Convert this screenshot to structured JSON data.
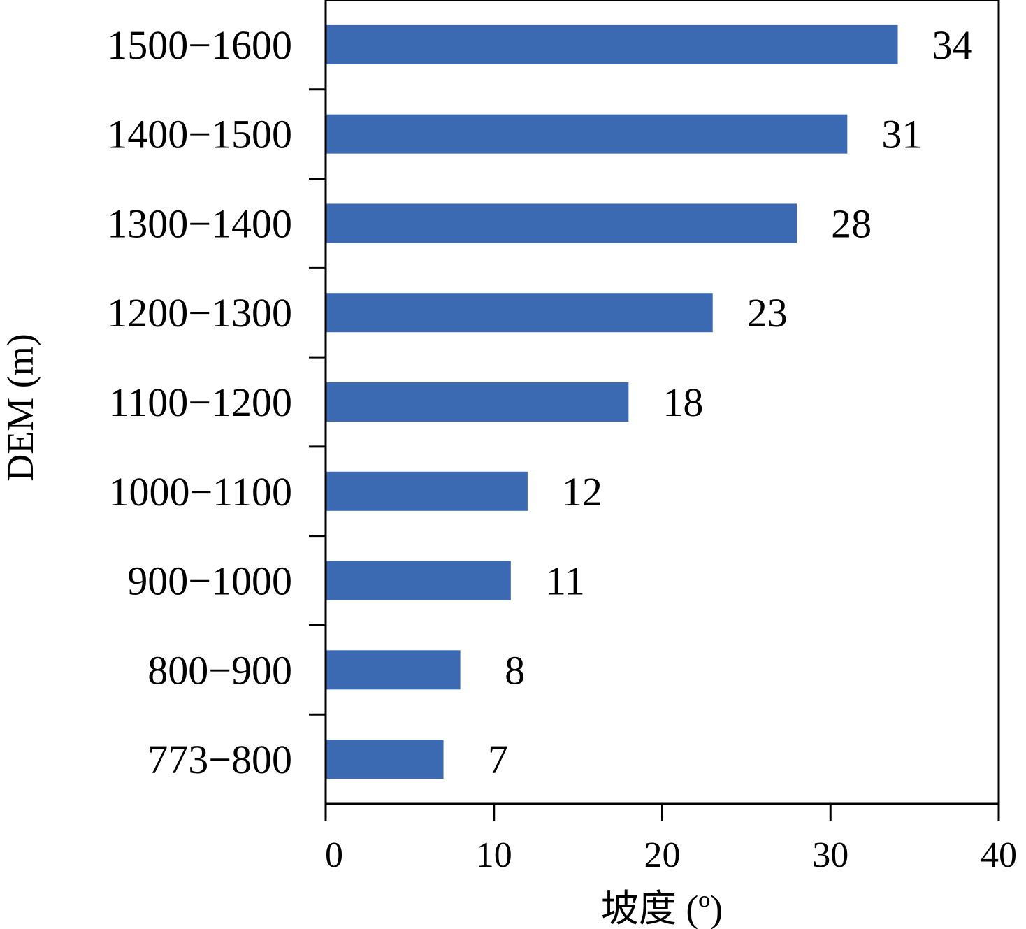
{
  "chart_data": {
    "type": "bar",
    "orientation": "horizontal",
    "categories": [
      "773−800",
      "800−900",
      "900−1000",
      "1000−1100",
      "1100−1200",
      "1200−1300",
      "1300−1400",
      "1400−1500",
      "1500−1600"
    ],
    "values": [
      7,
      8,
      11,
      12,
      18,
      23,
      28,
      31,
      34
    ],
    "data_labels": [
      "7",
      "8",
      "11",
      "12",
      "18",
      "23",
      "28",
      "31",
      "34"
    ],
    "xlabel": "坡度 (º)",
    "ylabel": "DEM (m)",
    "xlim": [
      0,
      40
    ],
    "xticks": [
      0,
      10,
      20,
      30,
      40
    ],
    "xtick_labels": [
      "0",
      "10",
      "20",
      "30",
      "40"
    ],
    "grid": false,
    "legend": "none",
    "bar_color": "#3b6ab3"
  }
}
